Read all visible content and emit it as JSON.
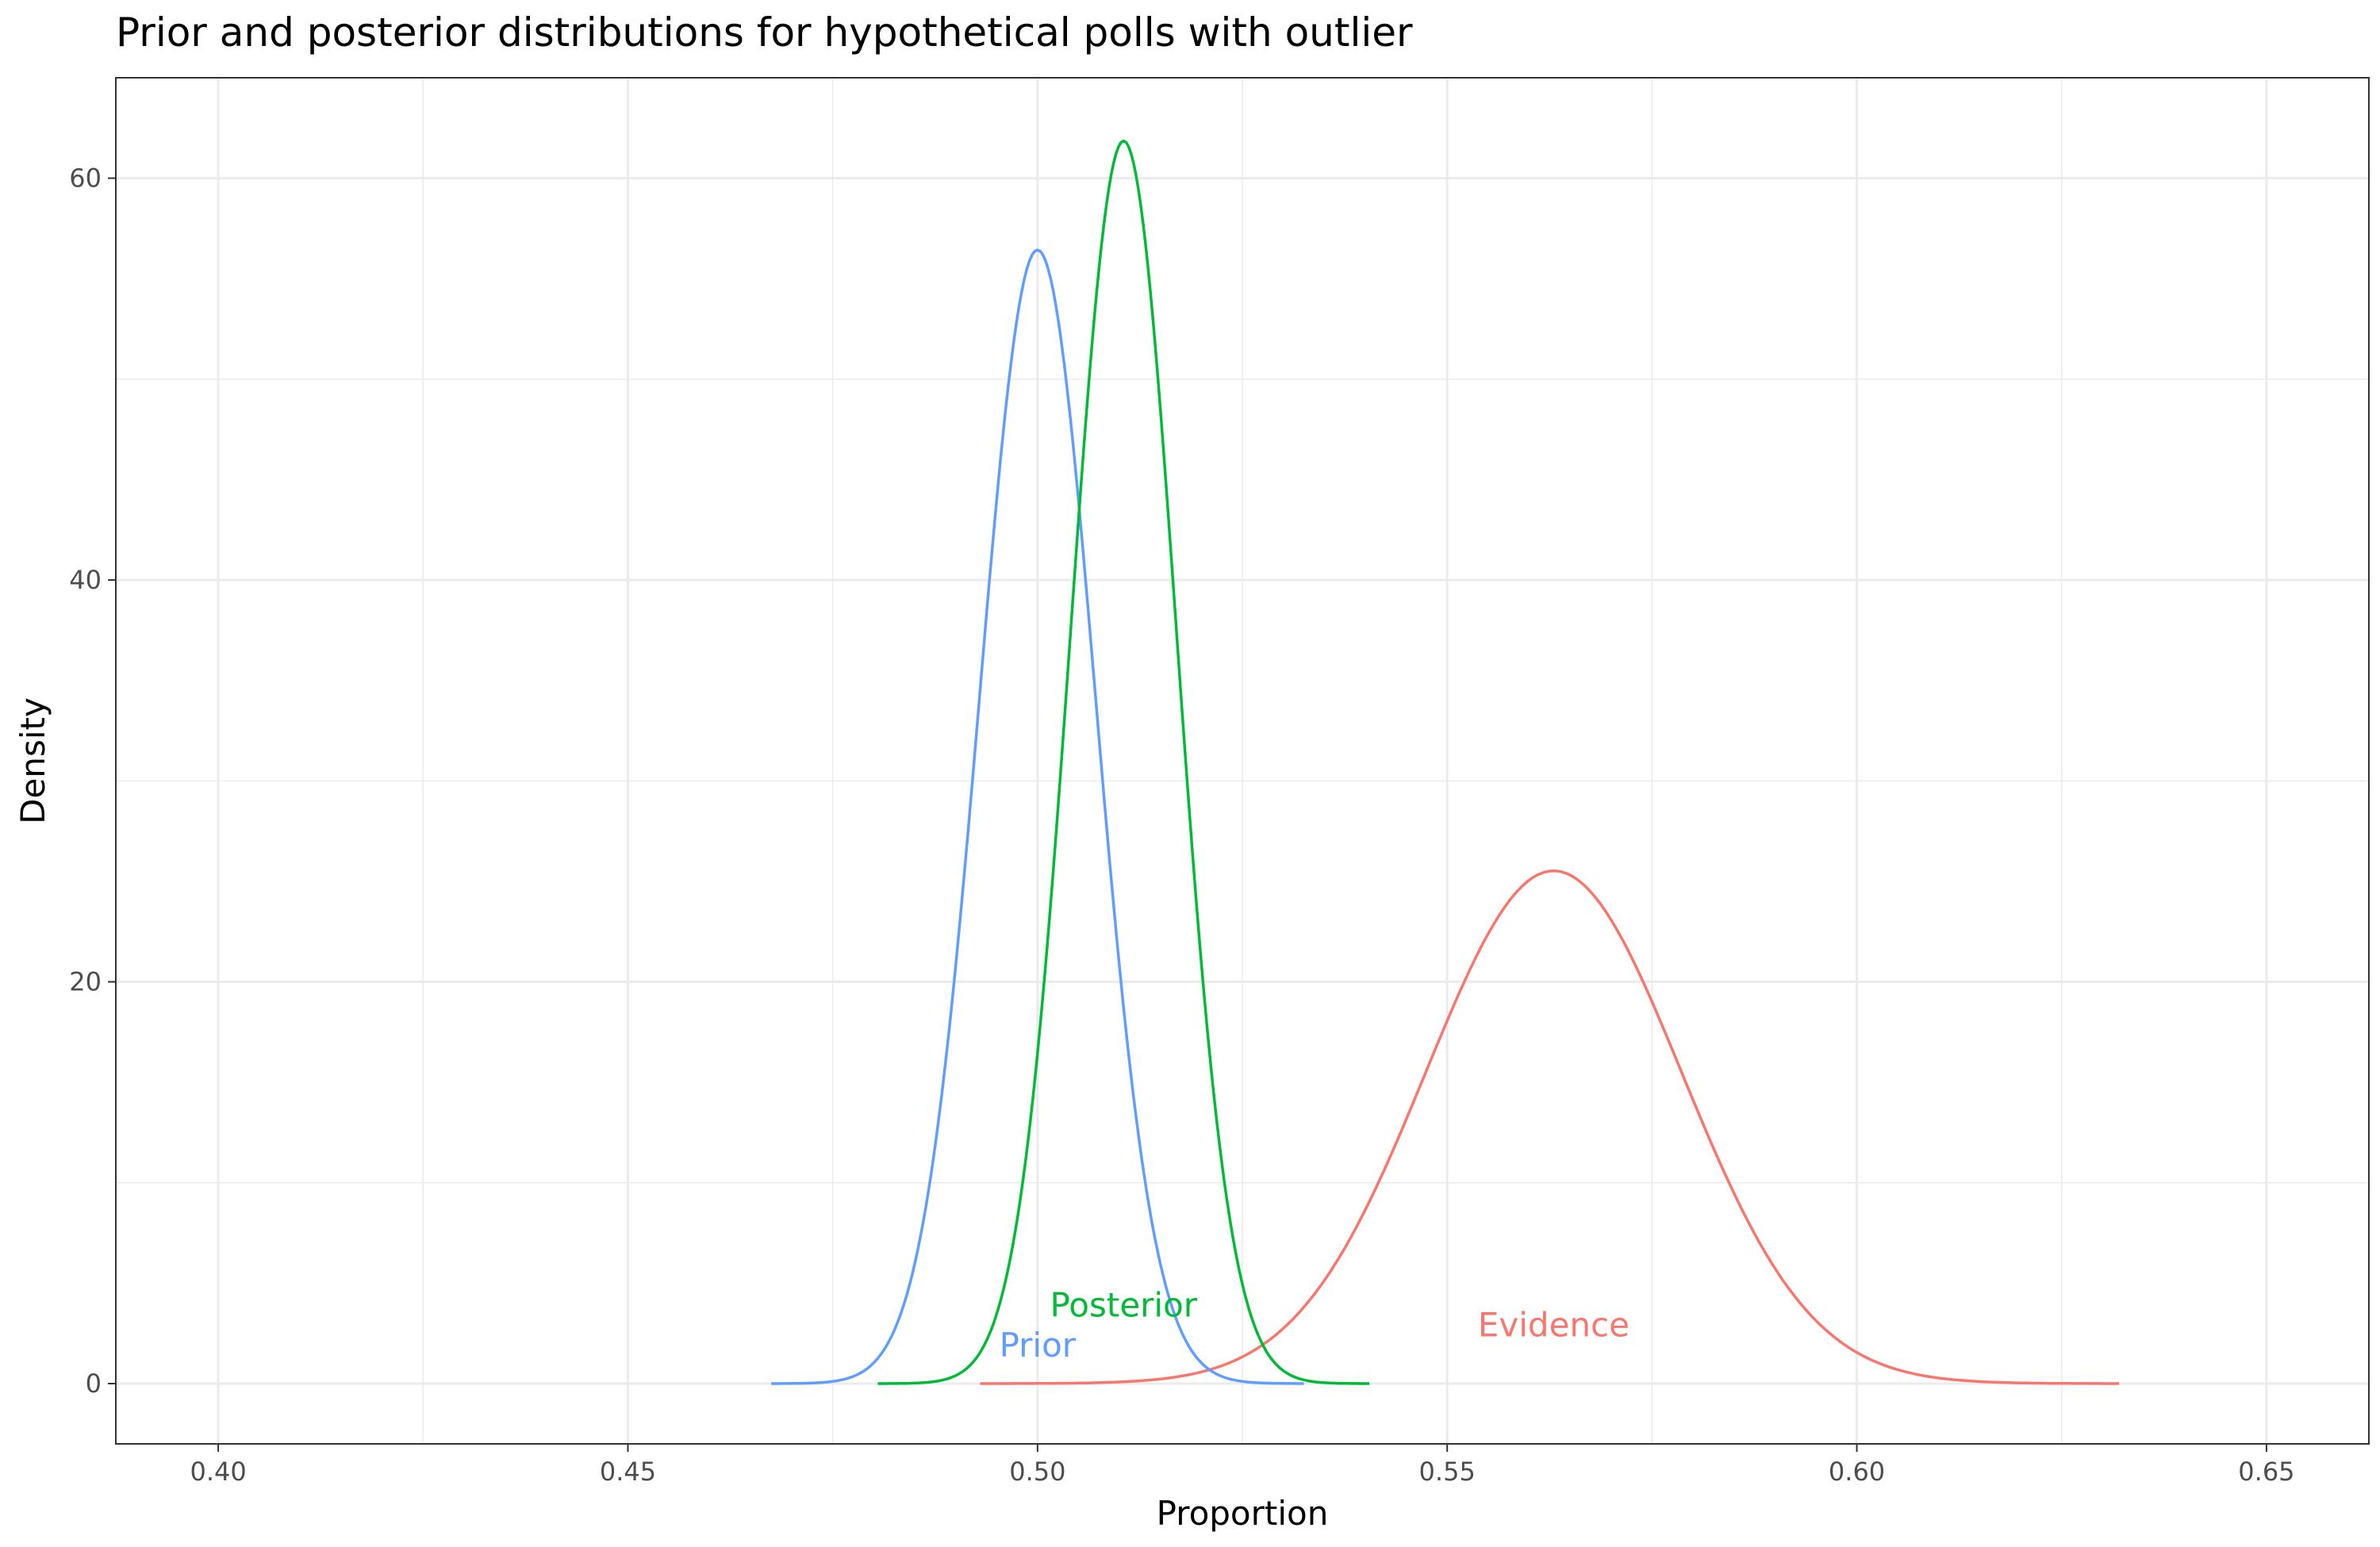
{
  "chart_data": {
    "type": "line",
    "title": "Prior and posterior distributions for hypothetical polls with outlier",
    "xlabel": "Proportion",
    "ylabel": "Density",
    "xlim": [
      0.3875,
      0.6625
    ],
    "ylim": [
      -3.0,
      65.0
    ],
    "x_ticks": [
      0.4,
      0.45,
      0.5,
      0.55,
      0.6,
      0.65
    ],
    "x_tick_labels": [
      "0.40",
      "0.45",
      "0.50",
      "0.55",
      "0.60",
      "0.65"
    ],
    "y_ticks": [
      0,
      20,
      40,
      60
    ],
    "y_tick_labels": [
      "0",
      "20",
      "40",
      "60"
    ],
    "grid": true,
    "series": [
      {
        "name": "Prior",
        "color": "#619CFF",
        "mean": 0.5,
        "sd": 0.00707,
        "x_range": [
          0.4675,
          0.5325
        ],
        "label_position": {
          "x": 0.5,
          "y": 1.9
        }
      },
      {
        "name": "Posterior",
        "color": "#00BA38",
        "mean": 0.5105,
        "sd": 0.00645,
        "x_range": [
          0.4805,
          0.5405
        ],
        "label_position": {
          "x": 0.5105,
          "y": 3.9
        }
      },
      {
        "name": "Evidence",
        "color": "#F8766D",
        "mean": 0.563,
        "sd": 0.01563,
        "x_range": [
          0.493,
          0.632
        ],
        "label_position": {
          "x": 0.563,
          "y": 2.9
        }
      }
    ]
  }
}
